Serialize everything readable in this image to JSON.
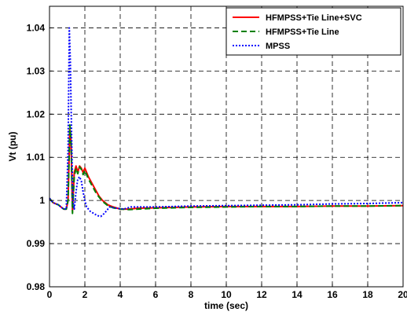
{
  "chart_data": {
    "type": "line",
    "title": "",
    "xlabel": "time (sec)",
    "ylabel": "Vt (pu)",
    "xlim": [
      0,
      20
    ],
    "ylim": [
      0.98,
      1.045
    ],
    "xticks": [
      0,
      2,
      4,
      6,
      8,
      10,
      12,
      14,
      16,
      18,
      20
    ],
    "yticks": [
      0.98,
      0.99,
      1,
      1.01,
      1.02,
      1.03,
      1.04
    ],
    "xtick_labels": [
      "0",
      "2",
      "4",
      "6",
      "8",
      "10",
      "12",
      "14",
      "16",
      "18",
      "20"
    ],
    "ytick_labels": [
      "0.98",
      "0.99",
      "1",
      "1.01",
      "1.02",
      "1.03",
      "1.04"
    ],
    "grid": true,
    "legend_position": "top-right",
    "series": [
      {
        "name": "HFMPSS+Tie Line+SVC",
        "color": "#ff0000",
        "style": "solid",
        "x": [
          0,
          0.2,
          0.5,
          0.8,
          0.95,
          1.05,
          1.15,
          1.22,
          1.3,
          1.4,
          1.5,
          1.6,
          1.7,
          1.8,
          1.9,
          2.0,
          2.1,
          2.2,
          2.4,
          2.6,
          2.8,
          3.0,
          3.3,
          3.6,
          4.0,
          4.5,
          5.0,
          6.0,
          8.0,
          10.0,
          12.0,
          14.0,
          16.0,
          18.0,
          20.0
        ],
        "y": [
          1.0005,
          0.9995,
          0.999,
          0.998,
          0.998,
          1.0,
          1.0165,
          1.0135,
          0.9975,
          1.0065,
          1.008,
          1.0065,
          1.008,
          1.0075,
          1.0065,
          1.0075,
          1.0065,
          1.0055,
          1.004,
          1.0025,
          1.001,
          1.0,
          0.999,
          0.9985,
          0.998,
          0.998,
          0.9982,
          0.9983,
          0.9985,
          0.9986,
          0.9986,
          0.9986,
          0.9987,
          0.9987,
          0.9988
        ]
      },
      {
        "name": "HFMPSS+Tie Line",
        "color": "#008000",
        "style": "dashed",
        "x": [
          0,
          0.2,
          0.5,
          0.8,
          0.95,
          1.05,
          1.15,
          1.22,
          1.3,
          1.4,
          1.5,
          1.6,
          1.7,
          1.8,
          1.9,
          2.0,
          2.1,
          2.2,
          2.4,
          2.6,
          2.8,
          3.0,
          3.3,
          3.6,
          4.0,
          4.5,
          5.0,
          6.0,
          8.0,
          10.0,
          12.0,
          14.0,
          16.0,
          18.0,
          20.0
        ],
        "y": [
          1.0005,
          0.9995,
          0.999,
          0.998,
          0.998,
          1.0,
          1.0175,
          1.014,
          0.997,
          1.0055,
          1.0075,
          1.0062,
          1.0078,
          1.0072,
          1.006,
          1.007,
          1.006,
          1.005,
          1.0035,
          1.002,
          1.0008,
          0.9998,
          0.9988,
          0.9983,
          0.998,
          0.9979,
          0.998,
          0.9982,
          0.9984,
          0.9985,
          0.9986,
          0.9986,
          0.9987,
          0.9987,
          0.9988
        ]
      },
      {
        "name": "MPSS",
        "color": "#0000ff",
        "style": "dotted",
        "x": [
          0,
          0.2,
          0.5,
          0.8,
          0.95,
          1.05,
          1.12,
          1.18,
          1.25,
          1.32,
          1.4,
          1.5,
          1.6,
          1.7,
          1.8,
          1.9,
          2.0,
          2.1,
          2.3,
          2.5,
          2.7,
          2.9,
          3.1,
          3.4,
          3.8,
          4.2,
          4.6,
          5.0,
          5.5,
          6.0,
          7.0,
          8.0,
          10.0,
          12.0,
          14.0,
          16.0,
          18.0,
          20.0
        ],
        "y": [
          1.0005,
          0.9995,
          0.999,
          0.998,
          0.998,
          1.012,
          1.04,
          1.032,
          1.015,
          1.0,
          0.998,
          1.002,
          1.005,
          1.0055,
          1.0045,
          1.002,
          1.0,
          0.9985,
          0.9975,
          0.997,
          0.9965,
          0.9963,
          0.997,
          0.9985,
          0.9982,
          0.998,
          0.9985,
          0.9985,
          0.9985,
          0.9985,
          0.9986,
          0.9987,
          0.9988,
          0.9989,
          0.999,
          0.9992,
          0.9993,
          0.9995
        ]
      }
    ]
  }
}
